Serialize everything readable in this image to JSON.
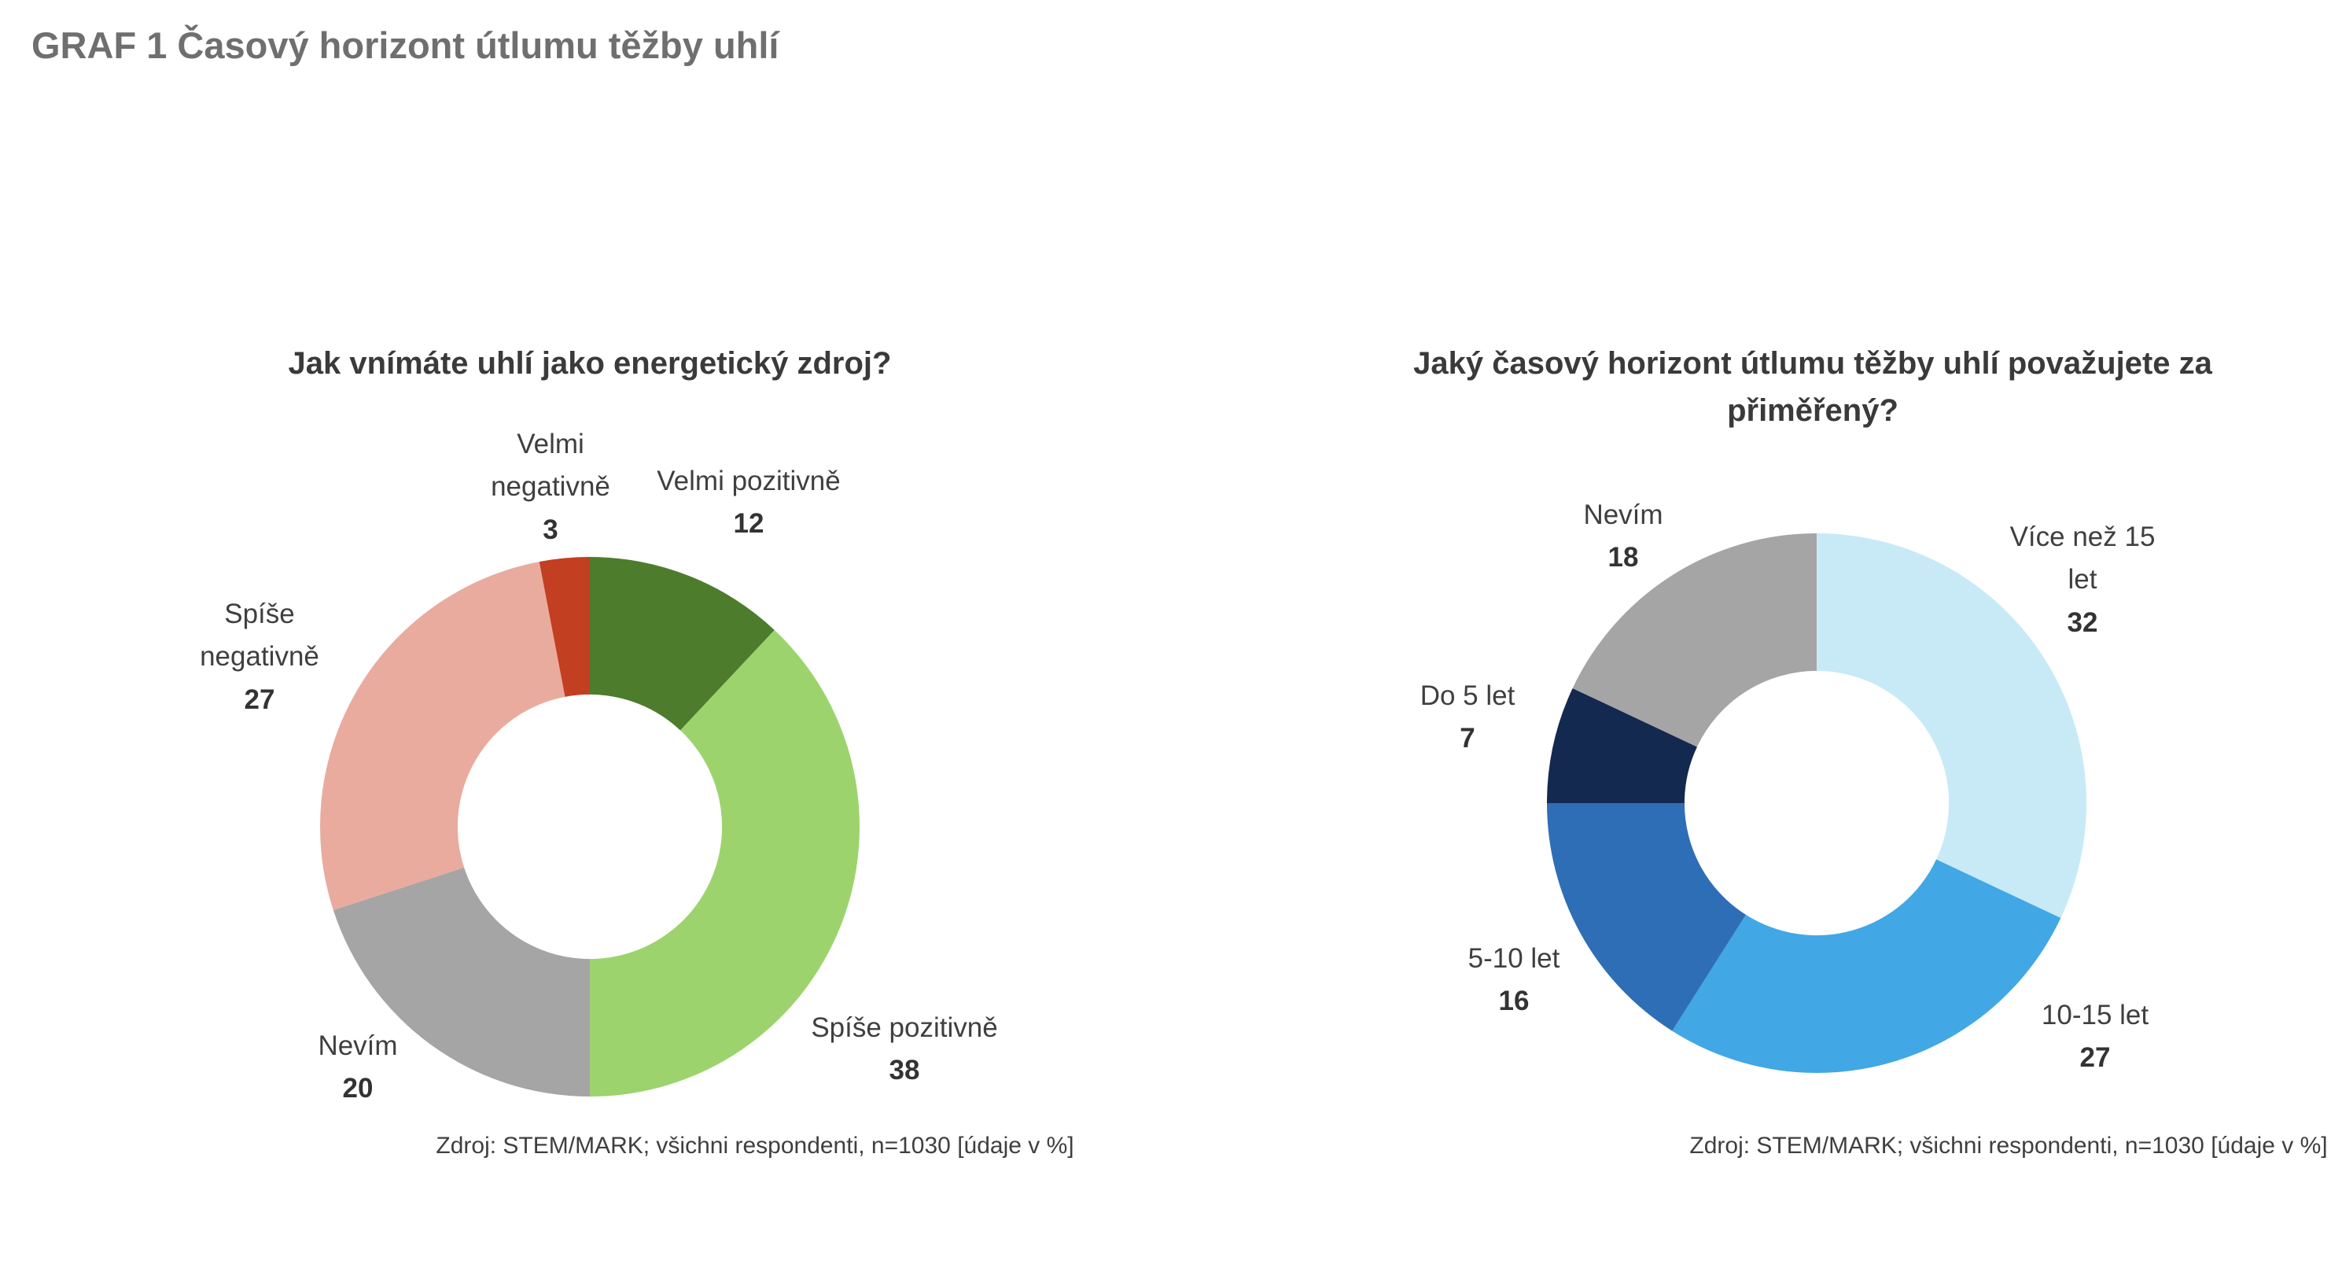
{
  "page": {
    "title": "GRAF 1 Časový horizont útlumu těžby uhlí"
  },
  "chart_data": [
    {
      "type": "pie",
      "subtype": "donut",
      "title": "Jak vnímáte uhlí jako energetický zdroj?",
      "source": "Zdroj: STEM/MARK; všichni respondenti, n=1030 [údaje v %]",
      "units": "%",
      "start_angle_deg": 0,
      "direction": "clockwise",
      "inner_radius_ratio": 0.49,
      "legend_position": "labels-around-donut",
      "segments": [
        {
          "label": "Velmi pozitivně",
          "value": 12,
          "color": "#4d7c2d"
        },
        {
          "label": "Spíše pozitivně",
          "value": 38,
          "color": "#9cd36d"
        },
        {
          "label": "Nevím",
          "value": 20,
          "color": "#a6a5a5"
        },
        {
          "label": "Spíše negativně",
          "value": 27,
          "color": "#e9ab9e"
        },
        {
          "label": "Velmi negativně",
          "value": 3,
          "color": "#c23f22"
        }
      ]
    },
    {
      "type": "pie",
      "subtype": "donut",
      "title": "Jaký časový horizont útlumu těžby uhlí považujete za přiměřený?",
      "source": "Zdroj: STEM/MARK; všichni respondenti, n=1030 [údaje v %]",
      "units": "%",
      "start_angle_deg": 0,
      "direction": "clockwise",
      "inner_radius_ratio": 0.49,
      "legend_position": "labels-around-donut",
      "segments": [
        {
          "label": "Více než 15 let",
          "value": 32,
          "color": "#c8eaf7"
        },
        {
          "label": "10-15 let",
          "value": 27,
          "color": "#41a7e5"
        },
        {
          "label": "5-10 let",
          "value": 16,
          "color": "#2e6eb6"
        },
        {
          "label": "Do 5 let",
          "value": 7,
          "color": "#14294f"
        },
        {
          "label": "Nevím",
          "value": 18,
          "color": "#a6a5a5"
        }
      ]
    }
  ]
}
